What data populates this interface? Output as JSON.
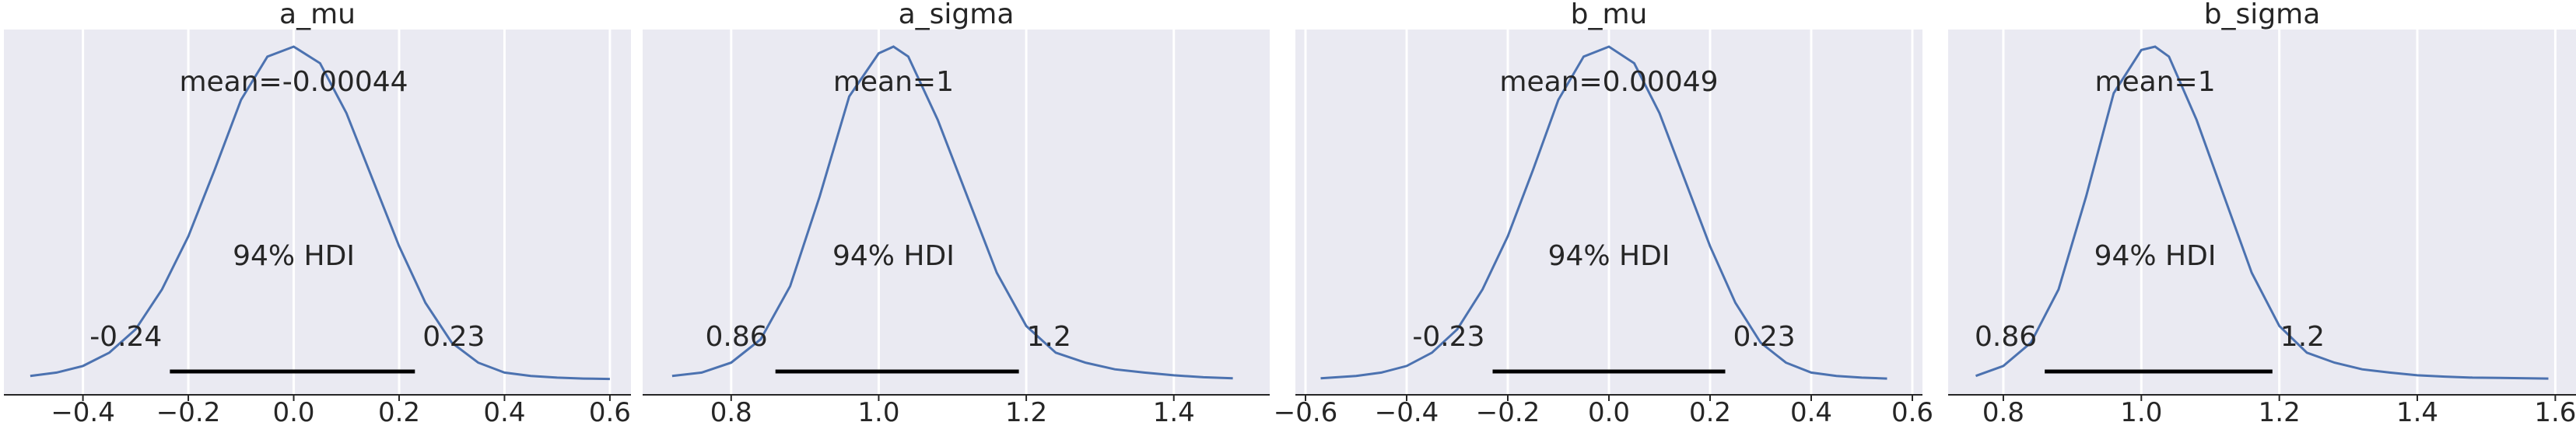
{
  "chart_data": [
    {
      "type": "line",
      "title": "a_mu",
      "mean_label": "mean=-0.00044",
      "hdi_label": "94% HDI",
      "hdi": {
        "low": -0.235,
        "high": 0.23,
        "low_label": "-0.24",
        "high_label": "0.23"
      },
      "xlim": [
        -0.55,
        0.64
      ],
      "xticks": [
        -0.4,
        -0.2,
        0.0,
        0.2,
        0.4,
        0.6
      ],
      "xtick_labels": [
        "−0.4",
        "−0.2",
        "0.0",
        "0.2",
        "0.4",
        "0.6"
      ],
      "grid": true,
      "x": [
        -0.5,
        -0.45,
        -0.4,
        -0.35,
        -0.3,
        -0.25,
        -0.2,
        -0.15,
        -0.1,
        -0.05,
        0.0,
        0.05,
        0.1,
        0.15,
        0.2,
        0.25,
        0.3,
        0.35,
        0.4,
        0.45,
        0.5,
        0.55,
        0.6
      ],
      "y": [
        0.01,
        0.02,
        0.04,
        0.08,
        0.15,
        0.27,
        0.43,
        0.63,
        0.84,
        0.97,
        1.0,
        0.95,
        0.8,
        0.6,
        0.4,
        0.23,
        0.11,
        0.05,
        0.02,
        0.01,
        0.005,
        0.002,
        0.001
      ]
    },
    {
      "type": "line",
      "title": "a_sigma",
      "mean_label": "mean=1",
      "hdi_label": "94% HDI",
      "hdi": {
        "low": 0.86,
        "high": 1.19,
        "low_label": "0.86",
        "high_label": "1.2"
      },
      "xlim": [
        0.68,
        1.53
      ],
      "xticks": [
        0.8,
        1.0,
        1.2,
        1.4
      ],
      "xtick_labels": [
        "0.8",
        "1.0",
        "1.2",
        "1.4"
      ],
      "grid": true,
      "x": [
        0.72,
        0.76,
        0.8,
        0.84,
        0.88,
        0.92,
        0.96,
        1.0,
        1.02,
        1.04,
        1.08,
        1.12,
        1.16,
        1.2,
        1.24,
        1.28,
        1.32,
        1.36,
        1.4,
        1.44,
        1.48
      ],
      "y": [
        0.01,
        0.02,
        0.05,
        0.12,
        0.28,
        0.55,
        0.85,
        0.98,
        1.0,
        0.97,
        0.78,
        0.55,
        0.32,
        0.16,
        0.08,
        0.05,
        0.03,
        0.02,
        0.012,
        0.006,
        0.003
      ]
    },
    {
      "type": "line",
      "title": "b_mu",
      "mean_label": "mean=0.00049",
      "hdi_label": "94% HDI",
      "hdi": {
        "low": -0.23,
        "high": 0.23,
        "low_label": "-0.23",
        "high_label": "0.23"
      },
      "xlim": [
        -0.62,
        0.62
      ],
      "xticks": [
        -0.6,
        -0.4,
        -0.2,
        0.0,
        0.2,
        0.4,
        0.6
      ],
      "xtick_labels": [
        "−0.6",
        "−0.4",
        "−0.2",
        "0.0",
        "0.2",
        "0.4",
        "0.6"
      ],
      "grid": true,
      "x": [
        -0.57,
        -0.5,
        -0.45,
        -0.4,
        -0.35,
        -0.3,
        -0.25,
        -0.2,
        -0.15,
        -0.1,
        -0.05,
        0.0,
        0.05,
        0.1,
        0.15,
        0.2,
        0.25,
        0.3,
        0.35,
        0.4,
        0.45,
        0.5,
        0.55
      ],
      "y": [
        0.003,
        0.01,
        0.02,
        0.04,
        0.08,
        0.15,
        0.27,
        0.43,
        0.63,
        0.84,
        0.97,
        1.0,
        0.95,
        0.8,
        0.6,
        0.4,
        0.23,
        0.11,
        0.05,
        0.02,
        0.01,
        0.005,
        0.002
      ]
    },
    {
      "type": "line",
      "title": "b_sigma",
      "mean_label": "mean=1",
      "hdi_label": "94% HDI",
      "hdi": {
        "low": 0.86,
        "high": 1.19,
        "low_label": "0.86",
        "high_label": "1.2"
      },
      "xlim": [
        0.72,
        1.63
      ],
      "xticks": [
        0.8,
        1.0,
        1.2,
        1.4,
        1.6
      ],
      "xtick_labels": [
        "0.8",
        "1.0",
        "1.2",
        "1.4",
        "1.6"
      ],
      "grid": true,
      "x": [
        0.76,
        0.8,
        0.84,
        0.88,
        0.92,
        0.96,
        1.0,
        1.02,
        1.04,
        1.08,
        1.12,
        1.16,
        1.2,
        1.24,
        1.28,
        1.32,
        1.36,
        1.4,
        1.44,
        1.48,
        1.52,
        1.56,
        1.59
      ],
      "y": [
        0.01,
        0.04,
        0.11,
        0.27,
        0.55,
        0.86,
        0.99,
        1.0,
        0.97,
        0.78,
        0.55,
        0.32,
        0.16,
        0.08,
        0.05,
        0.03,
        0.02,
        0.012,
        0.008,
        0.005,
        0.004,
        0.003,
        0.002
      ]
    }
  ]
}
